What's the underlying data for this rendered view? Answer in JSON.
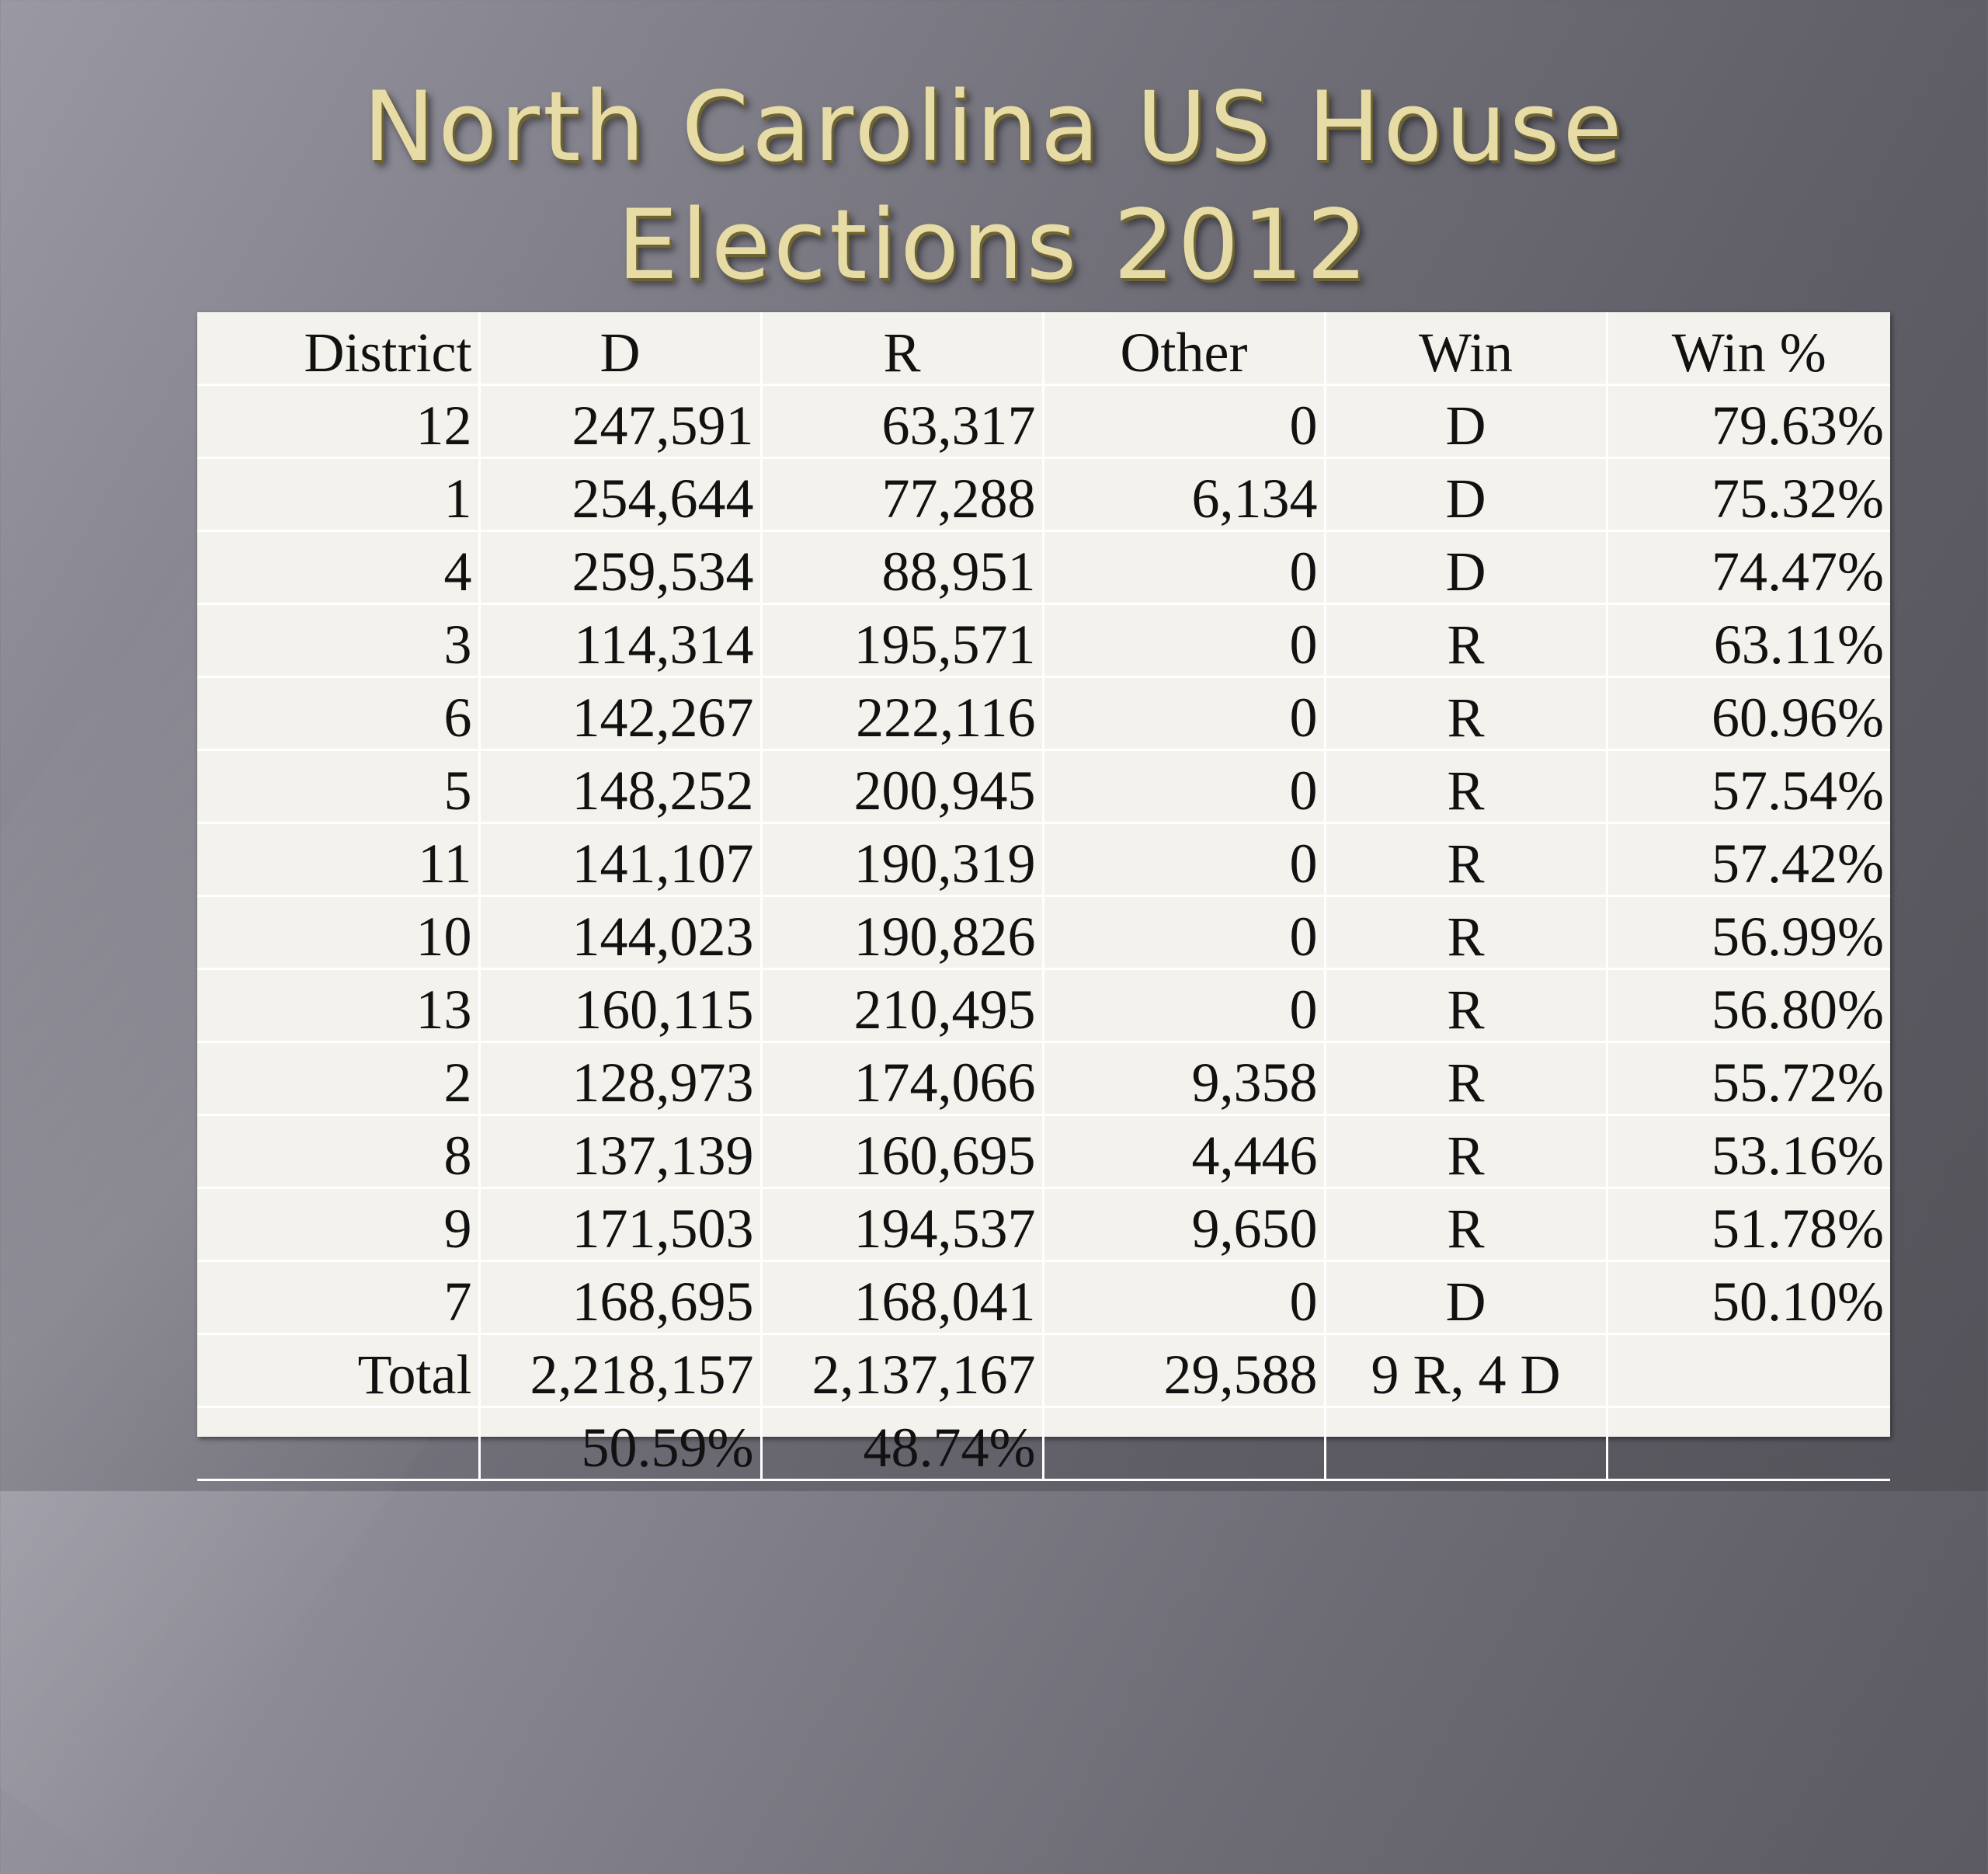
{
  "slide": {
    "title_line1": "North Carolina US House",
    "title_line2": "Elections 2012"
  },
  "table": {
    "headers": [
      "District",
      "D",
      "R",
      "Other",
      "Win",
      "Win %"
    ],
    "rows": [
      [
        "12",
        "247,591",
        "63,317",
        "0",
        "D",
        "79.63%"
      ],
      [
        "1",
        "254,644",
        "77,288",
        "6,134",
        "D",
        "75.32%"
      ],
      [
        "4",
        "259,534",
        "88,951",
        "0",
        "D",
        "74.47%"
      ],
      [
        "3",
        "114,314",
        "195,571",
        "0",
        "R",
        "63.11%"
      ],
      [
        "6",
        "142,267",
        "222,116",
        "0",
        "R",
        "60.96%"
      ],
      [
        "5",
        "148,252",
        "200,945",
        "0",
        "R",
        "57.54%"
      ],
      [
        "11",
        "141,107",
        "190,319",
        "0",
        "R",
        "57.42%"
      ],
      [
        "10",
        "144,023",
        "190,826",
        "0",
        "R",
        "56.99%"
      ],
      [
        "13",
        "160,115",
        "210,495",
        "0",
        "R",
        "56.80%"
      ],
      [
        "2",
        "128,973",
        "174,066",
        "9,358",
        "R",
        "55.72%"
      ],
      [
        "8",
        "137,139",
        "160,695",
        "4,446",
        "R",
        "53.16%"
      ],
      [
        "9",
        "171,503",
        "194,537",
        "9,650",
        "R",
        "51.78%"
      ],
      [
        "7",
        "168,695",
        "168,041",
        "0",
        "D",
        "50.10%"
      ],
      [
        "Total",
        "2,218,157",
        "2,137,167",
        "29,588",
        "9 R, 4 D",
        ""
      ],
      [
        "",
        "50.59%",
        "48.74%",
        "",
        "",
        ""
      ]
    ]
  }
}
